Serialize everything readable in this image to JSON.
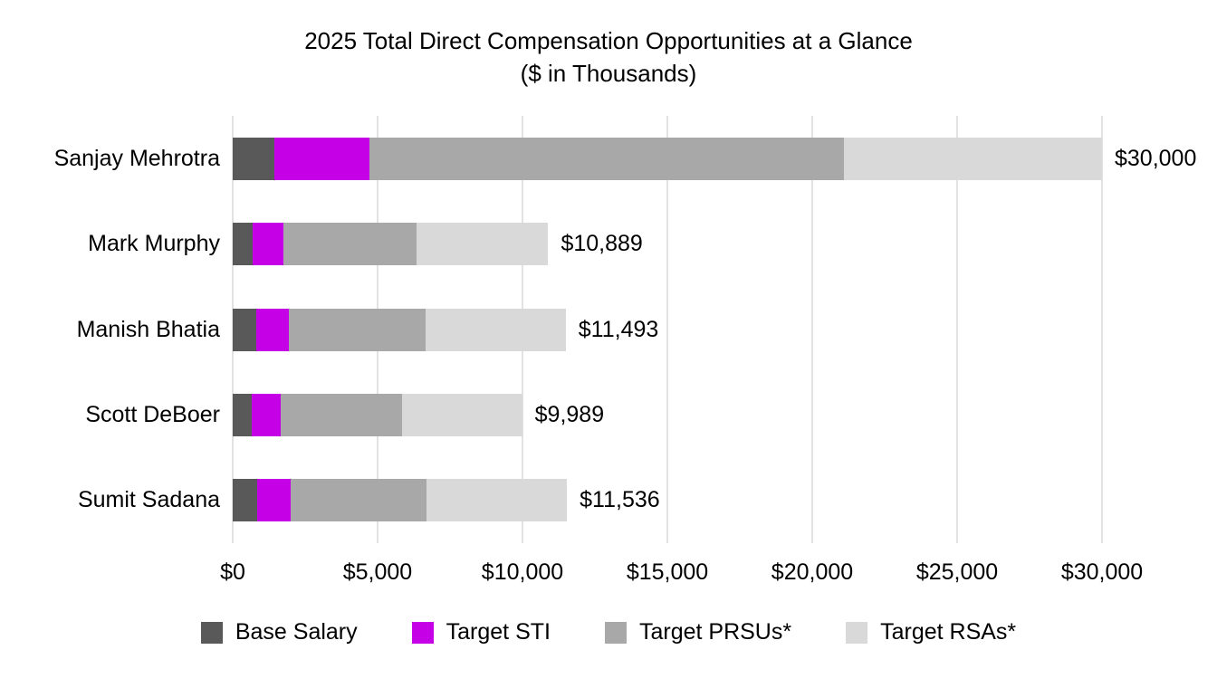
{
  "title": {
    "line1": "2025 Total Direct Compensation Opportunities at a Glance",
    "line2": "($ in Thousands)"
  },
  "chart_data": {
    "type": "bar",
    "orientation": "horizontal",
    "stacked": true,
    "title": "2025 Total Direct Compensation Opportunities at a Glance ($ in Thousands)",
    "categories": [
      "Sanjay Mehrotra",
      "Mark Murphy",
      "Manish Bhatia",
      "Scott DeBoer",
      "Sumit Sadana"
    ],
    "series": [
      {
        "name": "Base Salary",
        "color": "#595959",
        "values": [
          1450,
          700,
          800,
          650,
          850
        ]
      },
      {
        "name": "Target STI",
        "color": "#c500e6",
        "values": [
          3263,
          1050,
          1150,
          1000,
          1150
        ]
      },
      {
        "name": "Target PRSUs*",
        "color": "#a8a8a8",
        "values": [
          16387,
          4600,
          4700,
          4200,
          4700
        ]
      },
      {
        "name": "Target RSAs*",
        "color": "#d9d9d9",
        "values": [
          8900,
          4539,
          4843,
          4139,
          4836
        ]
      }
    ],
    "totals": [
      30000,
      10889,
      11493,
      9989,
      11536
    ],
    "total_labels": [
      "$30,000",
      "$10,889",
      "$11,493",
      "$9,989",
      "$11,536"
    ],
    "xlim": [
      0,
      30000
    ],
    "x_ticks": [
      0,
      5000,
      10000,
      15000,
      20000,
      25000,
      30000
    ],
    "x_tick_labels": [
      "$0",
      "$5,000",
      "$10,000",
      "$15,000",
      "$20,000",
      "$25,000",
      "$30,000"
    ],
    "grid": true,
    "legend_position": "bottom"
  }
}
